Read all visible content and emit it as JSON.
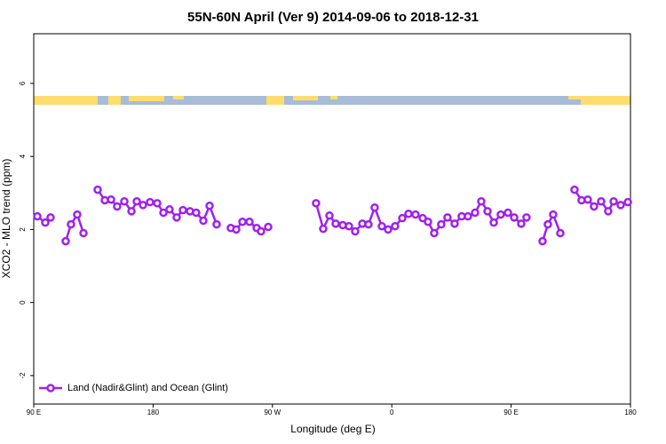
{
  "chart_data": {
    "type": "line",
    "title": "55N-60N April (Ver 9)   2014-09-06 to 2018-12-31",
    "xlabel": "Longitude (deg E)",
    "ylabel": "XCO2 - MLO trend (ppm)",
    "xlim": [
      90,
      540
    ],
    "ylim": [
      -2.78,
      7.36
    ],
    "xticks": [
      {
        "value": 90,
        "label": "90 E"
      },
      {
        "value": 180,
        "label": "180"
      },
      {
        "value": 270,
        "label": "90 W"
      },
      {
        "value": 360,
        "label": "0"
      },
      {
        "value": 450,
        "label": "90 E"
      },
      {
        "value": 540,
        "label": "180"
      }
    ],
    "yticks": [
      -2,
      0,
      2,
      4,
      6
    ],
    "legend": "bottom left",
    "series": [
      {
        "name": "Land (Nadir&Glint) and Ocean (Glint)",
        "color": "#a020f0",
        "x": [
          92.7,
          98.7,
          102.7,
          108,
          114.1,
          118.1,
          122.8,
          127.5,
          133,
          138.2,
          143.6,
          148.3,
          152.9,
          158.3,
          163.7,
          167.7,
          172.4,
          177.7,
          183.1,
          187.8,
          192.4,
          197.8,
          202.5,
          207.8,
          212.5,
          217.9,
          222.6,
          227.9,
          233,
          238.6,
          242.7,
          247.4,
          252.7,
          258.1,
          261.4,
          266.8,
          285,
          302.9,
          308.3,
          313.0,
          317.7,
          323.0,
          327.7,
          332.4,
          337.8,
          342.4,
          347.1,
          352.5,
          357.2,
          362.5,
          367.9,
          372.6,
          377.9,
          383.3,
          387.3,
          392.0,
          397.3,
          402.0,
          407.4,
          412.7,
          417.4,
          422.8,
          427.5,
          432.2,
          436.9,
          442.2,
          447.6,
          452.3,
          457.6,
          461.6,
          468,
          473.7,
          477.7,
          481.7,
          487.1,
          492,
          497.8,
          503.1,
          507.8,
          512.5,
          517.9,
          523.2,
          527.3,
          532.6,
          538.0
        ],
        "values": [
          2.36,
          2.19,
          2.33,
          null,
          1.68,
          2.14,
          2.41,
          1.9,
          null,
          3.09,
          2.8,
          2.82,
          2.63,
          2.77,
          2.5,
          2.77,
          2.67,
          2.75,
          2.72,
          2.46,
          2.55,
          2.33,
          2.53,
          2.5,
          2.46,
          2.24,
          2.65,
          2.14,
          null,
          2.04,
          2.0,
          2.21,
          2.21,
          2.04,
          1.95,
          2.07,
          null,
          2.72,
          2.02,
          2.38,
          2.16,
          2.12,
          2.09,
          1.95,
          2.16,
          2.14,
          2.6,
          2.09,
          2.0,
          2.09,
          2.31,
          2.43,
          2.41,
          2.31,
          2.21,
          1.9,
          2.14,
          2.33,
          2.16,
          2.36,
          2.36,
          2.46,
          2.77,
          2.5,
          2.19,
          2.41,
          2.46,
          2.33,
          2.16,
          2.33,
          null,
          1.68,
          2.14,
          2.41,
          1.9,
          null,
          3.09,
          2.8,
          2.82,
          2.63,
          2.77,
          2.5,
          2.77,
          2.67,
          2.75
        ]
      }
    ]
  }
}
